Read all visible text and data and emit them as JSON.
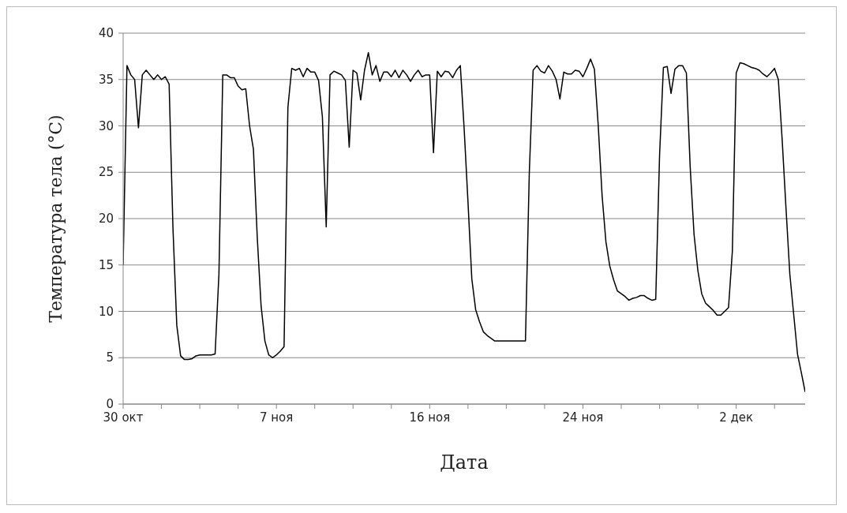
{
  "chart_data": {
    "type": "line",
    "xlabel": "Дата",
    "ylabel": "Температура тела (°C)",
    "categories": [
      "30 окт",
      null,
      null,
      null,
      null,
      null,
      null,
      null,
      null,
      null,
      null,
      null,
      null,
      null,
      null,
      null,
      null,
      null,
      null,
      null,
      null,
      null,
      null,
      null,
      null,
      null,
      null,
      null,
      null,
      null,
      null,
      null,
      null,
      null,
      null,
      null,
      null,
      null,
      null,
      null,
      "7 ноя",
      null,
      null,
      null,
      null,
      null,
      null,
      null,
      null,
      null,
      null,
      null,
      null,
      null,
      null,
      null,
      null,
      null,
      null,
      null,
      null,
      null,
      null,
      null,
      null,
      null,
      null,
      null,
      null,
      null,
      null,
      null,
      null,
      null,
      null,
      null,
      null,
      null,
      null,
      null,
      "16 ноя",
      null,
      null,
      null,
      null,
      null,
      null,
      null,
      null,
      null,
      null,
      null,
      null,
      null,
      null,
      null,
      null,
      null,
      null,
      null,
      null,
      null,
      null,
      null,
      null,
      null,
      null,
      null,
      null,
      null,
      null,
      null,
      null,
      null,
      null,
      null,
      null,
      null,
      null,
      null,
      "24 ноя",
      null,
      null,
      null,
      null,
      null,
      null,
      null,
      null,
      null,
      null,
      null,
      null,
      null,
      null,
      null,
      null,
      null,
      null,
      null,
      null,
      null,
      null,
      null,
      null,
      null,
      null,
      null,
      null,
      null,
      null,
      null,
      null,
      null,
      null,
      null,
      null,
      null,
      null,
      null,
      "2 дек",
      null,
      null,
      null,
      null,
      null,
      null,
      null,
      null,
      null,
      null,
      null,
      null,
      null,
      null,
      null,
      null,
      null,
      null
    ],
    "ylim": [
      0,
      40
    ],
    "yticks": [
      0,
      5,
      10,
      15,
      20,
      25,
      30,
      35,
      40
    ],
    "grid": "y",
    "series": [
      {
        "color": "#000000",
        "values": [
          15,
          36.5,
          35.5,
          35,
          29.8,
          35.5,
          36,
          35.5,
          35,
          35.5,
          35,
          35.3,
          34.5,
          19,
          8.5,
          5.2,
          4.8,
          4.8,
          4.9,
          5.2,
          5.3,
          5.3,
          5.3,
          5.3,
          5.4,
          14,
          35.5,
          35.5,
          35.2,
          35.2,
          34.3,
          33.9,
          34,
          30,
          27.5,
          18,
          10.6,
          6.8,
          5.3,
          5,
          5.3,
          5.7,
          6.2,
          32,
          36.2,
          36,
          36.2,
          35.3,
          36.2,
          35.8,
          35.8,
          34.9,
          31,
          19.1,
          35.5,
          35.9,
          35.7,
          35.5,
          34.9,
          27.7,
          36,
          35.7,
          32.8,
          36,
          37.9,
          35.5,
          36.5,
          34.8,
          35.8,
          35.8,
          35.3,
          36,
          35.2,
          36,
          35.5,
          34.8,
          35.5,
          36,
          35.3,
          35.5,
          35.5,
          27.1,
          35.9,
          35.3,
          35.9,
          35.8,
          35.2,
          36,
          36.5,
          29.7,
          21.8,
          13.5,
          10.2,
          8.9,
          7.8,
          7.4,
          7.1,
          6.8,
          6.8,
          6.8,
          6.8,
          6.8,
          6.8,
          6.8,
          6.8,
          6.8,
          24.9,
          36,
          36.5,
          35.9,
          35.7,
          36.5,
          35.9,
          35,
          32.9,
          35.8,
          35.6,
          35.6,
          36,
          35.9,
          35.3,
          36.2,
          37.2,
          36.1,
          30,
          22.5,
          17.5,
          14.9,
          13.4,
          12.2,
          11.9,
          11.6,
          11.2,
          11.4,
          11.5,
          11.7,
          11.7,
          11.4,
          11.2,
          11.3,
          26.8,
          36.3,
          36.4,
          33.5,
          36.1,
          36.5,
          36.5,
          35.7,
          25.5,
          18.3,
          14.4,
          11.9,
          10.9,
          10.5,
          10.1,
          9.6,
          9.6,
          10,
          10.4,
          16.5,
          35.7,
          36.8,
          36.7,
          36.5,
          36.3,
          36.2,
          36,
          35.6,
          35.3,
          35.7,
          36.2,
          35,
          28.5,
          21.1,
          14,
          9.7,
          5.4,
          3.4,
          1.3
        ]
      }
    ]
  }
}
